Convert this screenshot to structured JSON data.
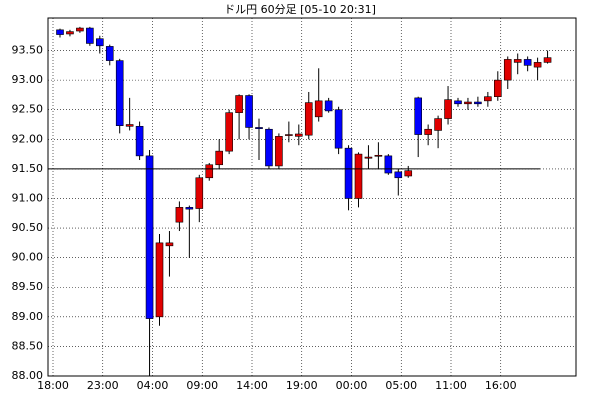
{
  "chart_data": {
    "type": "candlestick",
    "title": "ドル円 60分足 [05-10 20:31]",
    "categories": [
      "18:00",
      null,
      null,
      null,
      null,
      "23:00",
      null,
      null,
      null,
      null,
      "04:00",
      null,
      null,
      null,
      null,
      "09:00",
      null,
      null,
      null,
      null,
      "14:00",
      null,
      null,
      null,
      null,
      "19:00",
      null,
      null,
      null,
      null,
      "00:00",
      null,
      null,
      null,
      null,
      "05:00",
      null,
      null,
      null,
      null,
      "11:00",
      null,
      null,
      null,
      null,
      "16:00",
      null,
      null,
      null,
      null
    ],
    "series": [
      {
        "up_color": "#e00000",
        "down_color": "#0000ff",
        "open": [
          93.85,
          93.78,
          93.83,
          93.88,
          93.7,
          93.57,
          93.33,
          92.22,
          92.22,
          91.72,
          89.0,
          90.2,
          90.6,
          90.85,
          90.83,
          91.35,
          91.57,
          91.8,
          92.45,
          92.74,
          92.2,
          92.17,
          91.55,
          92.07,
          92.05,
          92.07,
          92.38,
          92.65,
          92.5,
          91.85,
          91.0,
          91.68,
          91.72,
          91.72,
          91.45,
          91.38,
          92.7,
          92.08,
          92.15,
          92.35,
          92.65,
          92.6,
          92.63,
          92.65,
          92.72,
          93.0,
          93.3,
          93.35,
          93.22,
          93.3
        ],
        "high": [
          93.87,
          93.85,
          93.9,
          93.9,
          93.75,
          93.6,
          93.36,
          92.7,
          92.3,
          91.82,
          90.4,
          90.45,
          90.95,
          90.88,
          91.4,
          91.6,
          92.0,
          92.5,
          92.76,
          92.76,
          92.35,
          92.2,
          92.1,
          92.3,
          92.25,
          92.8,
          93.2,
          92.7,
          92.55,
          91.9,
          91.78,
          91.9,
          91.95,
          91.75,
          91.5,
          91.55,
          92.72,
          92.25,
          92.4,
          92.9,
          92.7,
          92.7,
          92.72,
          92.8,
          93.15,
          93.4,
          93.45,
          93.4,
          93.38,
          93.5
        ],
        "low": [
          93.72,
          93.74,
          93.8,
          93.58,
          93.45,
          93.25,
          92.1,
          92.15,
          91.65,
          88.0,
          88.85,
          89.68,
          90.45,
          90.0,
          90.6,
          91.3,
          91.5,
          91.75,
          92.0,
          92.0,
          91.65,
          91.5,
          91.5,
          91.95,
          91.9,
          92.0,
          92.3,
          92.45,
          91.75,
          90.8,
          90.85,
          91.5,
          91.5,
          91.4,
          91.05,
          91.35,
          91.7,
          91.9,
          91.85,
          92.25,
          92.55,
          92.5,
          92.55,
          92.55,
          92.65,
          92.85,
          93.1,
          93.15,
          93.0,
          93.28
        ],
        "close": [
          93.77,
          93.82,
          93.88,
          93.62,
          93.58,
          93.33,
          92.23,
          92.25,
          91.72,
          88.97,
          90.25,
          90.25,
          90.85,
          90.82,
          91.35,
          91.57,
          91.8,
          92.45,
          92.74,
          92.2,
          92.18,
          91.55,
          92.05,
          92.08,
          92.09,
          92.62,
          92.65,
          92.48,
          91.85,
          91.0,
          91.75,
          91.7,
          91.73,
          91.43,
          91.35,
          91.47,
          92.08,
          92.17,
          92.35,
          92.67,
          92.6,
          92.63,
          92.6,
          92.72,
          93.0,
          93.35,
          93.35,
          93.25,
          93.3,
          93.38
        ]
      }
    ],
    "reference_line": 91.5,
    "ylim": [
      88,
      94.05
    ],
    "yticks": [
      {
        "value": 88,
        "label": "88.00"
      },
      {
        "value": 88.5,
        "label": "88.50"
      },
      {
        "value": 89,
        "label": "89.00"
      },
      {
        "value": 89.5,
        "label": "89.50"
      },
      {
        "value": 90,
        "label": "90.00"
      },
      {
        "value": 90.5,
        "label": "90.50"
      },
      {
        "value": 91,
        "label": "91.00"
      },
      {
        "value": 91.5,
        "label": "91.50"
      },
      {
        "value": 92,
        "label": "92.00"
      },
      {
        "value": 92.5,
        "label": "92.50"
      },
      {
        "value": 93,
        "label": "93.00"
      },
      {
        "value": 93.5,
        "label": "93.50"
      }
    ],
    "grid": true
  }
}
